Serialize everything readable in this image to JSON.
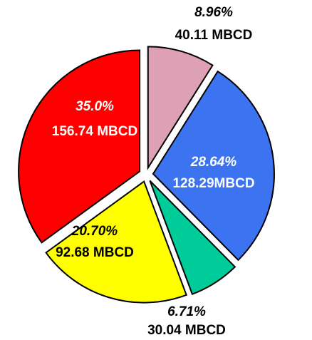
{
  "chart_data": {
    "type": "pie",
    "values": [
      8.96,
      28.64,
      6.71,
      20.7,
      35.0
    ],
    "value_labels": [
      "8.96%",
      "28.64%",
      "6.71%",
      "20.70%",
      "35.0%"
    ],
    "amounts": [
      40.11,
      128.29,
      30.04,
      92.68,
      156.74
    ],
    "amount_labels": [
      "40.11 MBCD",
      "128.29MBCD",
      "30.04 MBCD",
      "92.68 MBCD",
      "156.74 MBCD"
    ],
    "colors": [
      "#dda0b5",
      "#3b73f0",
      "#00cc99",
      "#ffff00",
      "#ff0000"
    ],
    "label_colors": [
      "#000000",
      "#ffffff",
      "#000000",
      "#000000",
      "#ffffff"
    ]
  }
}
